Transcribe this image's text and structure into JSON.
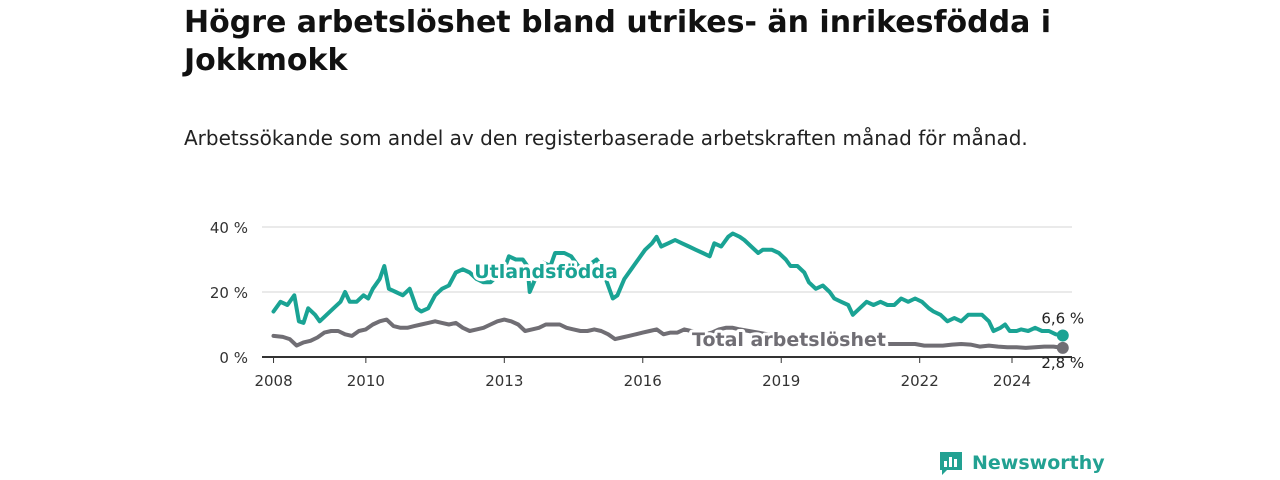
{
  "header": {
    "title": "Högre arbetslöshet bland utrikes- än inrikesfödda i Jokkmokk",
    "subtitle": "Arbetssökande som andel av den registerbaserade arbetskraften månad för månad."
  },
  "brand": {
    "name": "Newsworthy",
    "icon": "newsworthy-logo-icon",
    "color": "#22a192"
  },
  "chart_data": {
    "type": "line",
    "x_ticks": [
      "2008",
      "2010",
      "2013",
      "2016",
      "2019",
      "2022",
      "2024"
    ],
    "x_tick_values": [
      2008,
      2010,
      2013,
      2016,
      2019,
      2022,
      2024
    ],
    "y_ticks": [
      "0 %",
      "20 %",
      "40 %"
    ],
    "y_tick_values": [
      0,
      20,
      40
    ],
    "xlim": [
      2007.75,
      2025.3
    ],
    "ylim": [
      0,
      40
    ],
    "grid": true,
    "series": [
      {
        "name": "Utlandsfödda",
        "color": "#1aa394",
        "end_label": "6,6 %",
        "points": [
          [
            2008.0,
            14
          ],
          [
            2008.15,
            17
          ],
          [
            2008.3,
            16
          ],
          [
            2008.45,
            19
          ],
          [
            2008.55,
            11
          ],
          [
            2008.65,
            10.5
          ],
          [
            2008.75,
            15
          ],
          [
            2008.9,
            13
          ],
          [
            2009.0,
            11
          ],
          [
            2009.15,
            13
          ],
          [
            2009.3,
            15
          ],
          [
            2009.45,
            17
          ],
          [
            2009.55,
            20
          ],
          [
            2009.65,
            17
          ],
          [
            2009.8,
            17
          ],
          [
            2009.95,
            19
          ],
          [
            2010.05,
            18
          ],
          [
            2010.15,
            21
          ],
          [
            2010.3,
            24
          ],
          [
            2010.4,
            28
          ],
          [
            2010.5,
            21
          ],
          [
            2010.65,
            20
          ],
          [
            2010.8,
            19
          ],
          [
            2010.95,
            21
          ],
          [
            2011.1,
            15
          ],
          [
            2011.2,
            14
          ],
          [
            2011.35,
            15
          ],
          [
            2011.5,
            19
          ],
          [
            2011.65,
            21
          ],
          [
            2011.8,
            22
          ],
          [
            2011.95,
            26
          ],
          [
            2012.1,
            27
          ],
          [
            2012.25,
            26
          ],
          [
            2012.4,
            24
          ],
          [
            2012.55,
            23
          ],
          [
            2012.7,
            23
          ],
          [
            2012.85,
            25
          ],
          [
            2013.0,
            27
          ],
          [
            2013.1,
            31
          ],
          [
            2013.25,
            30
          ],
          [
            2013.4,
            30
          ],
          [
            2013.5,
            28
          ],
          [
            2013.55,
            20
          ],
          [
            2013.7,
            25
          ],
          [
            2013.85,
            29
          ],
          [
            2014.0,
            28
          ],
          [
            2014.1,
            32
          ],
          [
            2014.3,
            32
          ],
          [
            2014.45,
            31
          ],
          [
            2014.6,
            28
          ],
          [
            2014.75,
            27
          ],
          [
            2014.9,
            29
          ],
          [
            2015.0,
            30
          ],
          [
            2015.1,
            28
          ],
          [
            2015.2,
            24
          ],
          [
            2015.35,
            18
          ],
          [
            2015.45,
            19
          ],
          [
            2015.6,
            24
          ],
          [
            2015.75,
            27
          ],
          [
            2015.9,
            30
          ],
          [
            2016.05,
            33
          ],
          [
            2016.2,
            35
          ],
          [
            2016.3,
            37
          ],
          [
            2016.4,
            34
          ],
          [
            2016.55,
            35
          ],
          [
            2016.7,
            36
          ],
          [
            2016.85,
            35
          ],
          [
            2017.0,
            34
          ],
          [
            2017.15,
            33
          ],
          [
            2017.3,
            32
          ],
          [
            2017.45,
            31
          ],
          [
            2017.55,
            35
          ],
          [
            2017.7,
            34
          ],
          [
            2017.85,
            37
          ],
          [
            2017.95,
            38
          ],
          [
            2018.1,
            37
          ],
          [
            2018.2,
            36
          ],
          [
            2018.35,
            34
          ],
          [
            2018.5,
            32
          ],
          [
            2018.6,
            33
          ],
          [
            2018.8,
            33
          ],
          [
            2018.95,
            32
          ],
          [
            2019.1,
            30
          ],
          [
            2019.2,
            28
          ],
          [
            2019.35,
            28
          ],
          [
            2019.5,
            26
          ],
          [
            2019.6,
            23
          ],
          [
            2019.75,
            21
          ],
          [
            2019.9,
            22
          ],
          [
            2020.05,
            20
          ],
          [
            2020.15,
            18
          ],
          [
            2020.3,
            17
          ],
          [
            2020.45,
            16
          ],
          [
            2020.55,
            13
          ],
          [
            2020.7,
            15
          ],
          [
            2020.85,
            17
          ],
          [
            2021.0,
            16
          ],
          [
            2021.15,
            17
          ],
          [
            2021.3,
            16
          ],
          [
            2021.45,
            16
          ],
          [
            2021.6,
            18
          ],
          [
            2021.75,
            17
          ],
          [
            2021.9,
            18
          ],
          [
            2022.05,
            17
          ],
          [
            2022.2,
            15
          ],
          [
            2022.3,
            14
          ],
          [
            2022.45,
            13
          ],
          [
            2022.6,
            11
          ],
          [
            2022.75,
            12
          ],
          [
            2022.9,
            11
          ],
          [
            2023.05,
            13
          ],
          [
            2023.2,
            13
          ],
          [
            2023.35,
            13
          ],
          [
            2023.5,
            11
          ],
          [
            2023.6,
            8
          ],
          [
            2023.75,
            9
          ],
          [
            2023.85,
            10
          ],
          [
            2023.95,
            8
          ],
          [
            2024.1,
            8
          ],
          [
            2024.2,
            8.5
          ],
          [
            2024.35,
            8
          ],
          [
            2024.5,
            9
          ],
          [
            2024.65,
            8
          ],
          [
            2024.8,
            8
          ],
          [
            2024.95,
            7
          ],
          [
            2025.1,
            6.6
          ]
        ]
      },
      {
        "name": "Total arbetslöshet",
        "color": "#706e74",
        "end_label": "2,8 %",
        "points": [
          [
            2008.0,
            6.5
          ],
          [
            2008.2,
            6.2
          ],
          [
            2008.35,
            5.5
          ],
          [
            2008.5,
            3.5
          ],
          [
            2008.65,
            4.5
          ],
          [
            2008.8,
            5
          ],
          [
            2008.95,
            6
          ],
          [
            2009.1,
            7.5
          ],
          [
            2009.25,
            8
          ],
          [
            2009.4,
            8
          ],
          [
            2009.55,
            7
          ],
          [
            2009.7,
            6.5
          ],
          [
            2009.85,
            8
          ],
          [
            2010.0,
            8.5
          ],
          [
            2010.15,
            10
          ],
          [
            2010.3,
            11
          ],
          [
            2010.45,
            11.5
          ],
          [
            2010.6,
            9.5
          ],
          [
            2010.75,
            9
          ],
          [
            2010.9,
            9
          ],
          [
            2011.05,
            9.5
          ],
          [
            2011.2,
            10
          ],
          [
            2011.35,
            10.5
          ],
          [
            2011.5,
            11
          ],
          [
            2011.65,
            10.5
          ],
          [
            2011.8,
            10
          ],
          [
            2011.95,
            10.5
          ],
          [
            2012.1,
            9
          ],
          [
            2012.25,
            8
          ],
          [
            2012.4,
            8.5
          ],
          [
            2012.55,
            9
          ],
          [
            2012.7,
            10
          ],
          [
            2012.85,
            11
          ],
          [
            2013.0,
            11.5
          ],
          [
            2013.15,
            11
          ],
          [
            2013.3,
            10
          ],
          [
            2013.45,
            8
          ],
          [
            2013.6,
            8.5
          ],
          [
            2013.75,
            9
          ],
          [
            2013.9,
            10
          ],
          [
            2014.05,
            10
          ],
          [
            2014.2,
            10
          ],
          [
            2014.35,
            9
          ],
          [
            2014.5,
            8.5
          ],
          [
            2014.65,
            8
          ],
          [
            2014.8,
            8
          ],
          [
            2014.95,
            8.5
          ],
          [
            2015.1,
            8
          ],
          [
            2015.25,
            7
          ],
          [
            2015.4,
            5.5
          ],
          [
            2015.55,
            6
          ],
          [
            2015.7,
            6.5
          ],
          [
            2015.85,
            7
          ],
          [
            2016.0,
            7.5
          ],
          [
            2016.15,
            8
          ],
          [
            2016.3,
            8.5
          ],
          [
            2016.45,
            7
          ],
          [
            2016.6,
            7.5
          ],
          [
            2016.75,
            7.5
          ],
          [
            2016.9,
            8.5
          ],
          [
            2017.05,
            8
          ],
          [
            2017.2,
            7.5
          ],
          [
            2017.35,
            7
          ],
          [
            2017.5,
            7.5
          ],
          [
            2017.65,
            8.5
          ],
          [
            2017.8,
            9
          ],
          [
            2017.95,
            9
          ],
          [
            2018.1,
            8.5
          ],
          [
            2018.3,
            8
          ],
          [
            2018.5,
            7.5
          ],
          [
            2018.7,
            7
          ],
          [
            2018.9,
            6.5
          ],
          [
            2019.1,
            6
          ],
          [
            2019.3,
            5.5
          ],
          [
            2019.5,
            5
          ],
          [
            2019.7,
            5
          ],
          [
            2019.9,
            5
          ],
          [
            2020.1,
            5.5
          ],
          [
            2020.3,
            5
          ],
          [
            2020.5,
            5
          ],
          [
            2020.7,
            4.5
          ],
          [
            2020.9,
            4.5
          ],
          [
            2021.1,
            4.5
          ],
          [
            2021.3,
            4
          ],
          [
            2021.5,
            4
          ],
          [
            2021.7,
            4
          ],
          [
            2021.9,
            4
          ],
          [
            2022.1,
            3.5
          ],
          [
            2022.3,
            3.5
          ],
          [
            2022.5,
            3.5
          ],
          [
            2022.7,
            3.8
          ],
          [
            2022.9,
            4
          ],
          [
            2023.1,
            3.8
          ],
          [
            2023.3,
            3.2
          ],
          [
            2023.5,
            3.5
          ],
          [
            2023.7,
            3.2
          ],
          [
            2023.9,
            3
          ],
          [
            2024.1,
            3
          ],
          [
            2024.3,
            2.8
          ],
          [
            2024.5,
            3
          ],
          [
            2024.7,
            3.2
          ],
          [
            2024.9,
            3.2
          ],
          [
            2025.1,
            2.8
          ]
        ]
      }
    ]
  }
}
